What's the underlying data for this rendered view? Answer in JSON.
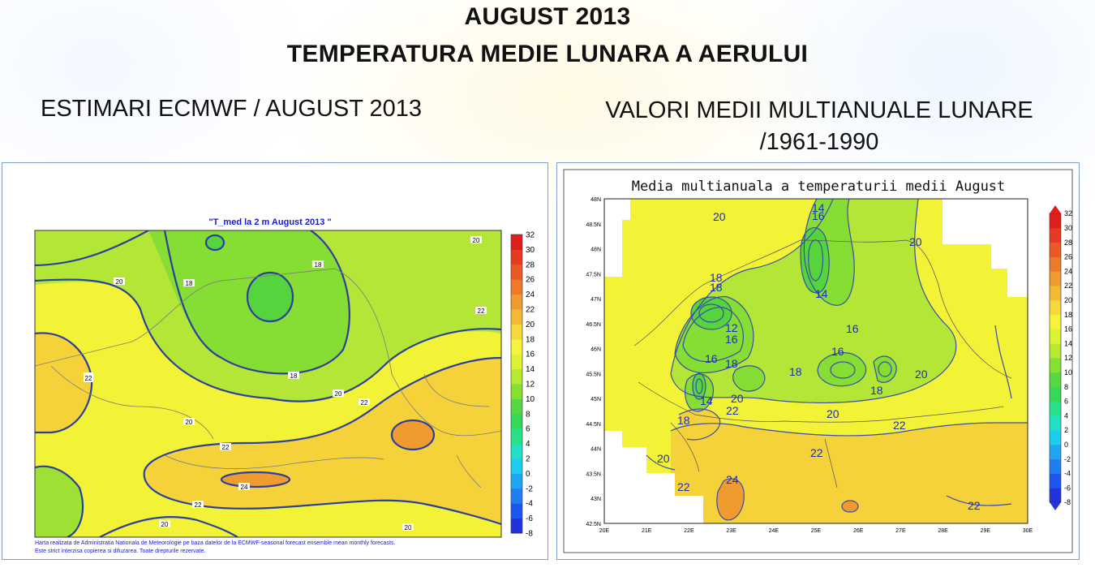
{
  "header": {
    "title_line1": "AUGUST 2013",
    "title_line2": "TEMPERATURA MEDIE LUNARA A AERULUI",
    "left_subtitle": "ESTIMARI ECMWF / AUGUST 2013",
    "right_subtitle_line1": "VALORI MEDII MULTIANUALE LUNARE",
    "right_subtitle_line2": "/1961-1990"
  },
  "left_map": {
    "title": "\"T_med la 2 m August 2013 \"",
    "footer_line1": "Harta realizata de Administratia Nationala de Meteorologie pe baza datelor de la ECMWF-seasonal forecast ensemble mean monthly forecasts.",
    "footer_line2": "Este strict interzisa copierea si difuzarea. Toate drepturile rezervate.",
    "legend_values": [
      "32",
      "30",
      "28",
      "26",
      "24",
      "22",
      "20",
      "18",
      "16",
      "14",
      "12",
      "10",
      "8",
      "6",
      "4",
      "2",
      "0",
      "-2",
      "-4",
      "-6",
      "-8"
    ],
    "contour_labels": [
      "20",
      "18",
      "18",
      "20",
      "18",
      "20",
      "22",
      "22",
      "22",
      "20",
      "22",
      "20",
      "24",
      "22",
      "20"
    ]
  },
  "right_map": {
    "title": "Media multianuala a temperaturii medii August",
    "lat_labels": [
      "48N",
      "48.5N",
      "48N",
      "47.5N",
      "47N",
      "46.5N",
      "46N",
      "45.5N",
      "45N",
      "44.5N",
      "44N",
      "43.5N",
      "43N",
      "42.5N"
    ],
    "lon_labels": [
      "20E",
      "21E",
      "22E",
      "23E",
      "24E",
      "25E",
      "26E",
      "27E",
      "28E",
      "29E",
      "30E"
    ],
    "legend_values": [
      "32",
      "30",
      "28",
      "26",
      "24",
      "22",
      "20",
      "18",
      "16",
      "14",
      "12",
      "10",
      "8",
      "6",
      "4",
      "2",
      "0",
      "-2",
      "-4",
      "-6",
      "-8"
    ],
    "contour_labels": [
      "20",
      "14",
      "16",
      "20",
      "18",
      "14",
      "18",
      "12",
      "16",
      "16",
      "18",
      "16",
      "18",
      "16",
      "14",
      "18",
      "20",
      "18",
      "20",
      "22",
      "22",
      "20",
      "22",
      "24",
      "22",
      "20",
      "22"
    ]
  },
  "colors": {
    "contour": "#2b3f9f",
    "scale": [
      "#2233dd",
      "#1e55f0",
      "#1f7ff0",
      "#1fa6f2",
      "#1ccdf0",
      "#20e0c8",
      "#27e08a",
      "#35d95a",
      "#55d840",
      "#86e030",
      "#b5ea30",
      "#dcf232",
      "#f5f33a",
      "#f6d83a",
      "#f2ba34",
      "#ee9a2f",
      "#ec7a2a",
      "#ea5a26",
      "#e63a22",
      "#e01e1e"
    ]
  }
}
